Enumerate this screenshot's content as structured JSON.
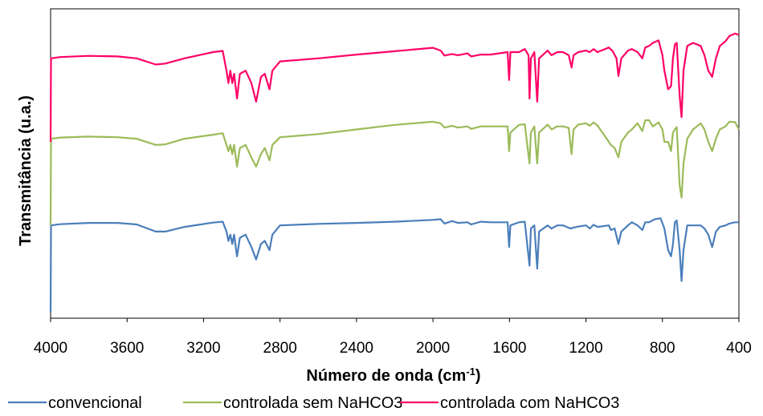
{
  "chart_data": {
    "type": "line",
    "title": "",
    "xlabel": "Número de onda (cm",
    "xlabel_sup": "-1",
    "xlabel_close": ")",
    "ylabel": "Transmitância (u.a.)",
    "xlim": [
      4000,
      400
    ],
    "x_reversed": true,
    "ylim": [
      0,
      100
    ],
    "y_ticks_shown": false,
    "grid": false,
    "legend_position": "bottom",
    "x_ticks": [
      "4000",
      "3600",
      "3200",
      "2800",
      "2400",
      "2000",
      "1600",
      "1200",
      "800",
      "400"
    ],
    "series": [
      {
        "name": "convencional",
        "color": "#4a7ebb",
        "points": [
          [
            4000,
            2
          ],
          [
            3998,
            30
          ],
          [
            3950,
            30.4
          ],
          [
            3800,
            30.8
          ],
          [
            3650,
            30.8
          ],
          [
            3550,
            30.3
          ],
          [
            3450,
            28
          ],
          [
            3400,
            28
          ],
          [
            3300,
            29.5
          ],
          [
            3150,
            30.9
          ],
          [
            3100,
            31.2
          ],
          [
            3080,
            28
          ],
          [
            3070,
            25
          ],
          [
            3060,
            27
          ],
          [
            3050,
            24
          ],
          [
            3040,
            27
          ],
          [
            3025,
            20
          ],
          [
            3010,
            26
          ],
          [
            2980,
            27
          ],
          [
            2950,
            23
          ],
          [
            2925,
            19
          ],
          [
            2900,
            24
          ],
          [
            2880,
            25
          ],
          [
            2855,
            22
          ],
          [
            2840,
            27
          ],
          [
            2800,
            30
          ],
          [
            2600,
            30.5
          ],
          [
            2400,
            30.8
          ],
          [
            2200,
            31.2
          ],
          [
            2000,
            31.8
          ],
          [
            1960,
            32
          ],
          [
            1940,
            30.6
          ],
          [
            1900,
            31.4
          ],
          [
            1870,
            30.8
          ],
          [
            1820,
            31
          ],
          [
            1800,
            30.3
          ],
          [
            1750,
            31.2
          ],
          [
            1700,
            31
          ],
          [
            1610,
            31
          ],
          [
            1602,
            23
          ],
          [
            1595,
            30
          ],
          [
            1550,
            31
          ],
          [
            1520,
            31.2
          ],
          [
            1495,
            17
          ],
          [
            1488,
            29
          ],
          [
            1470,
            30
          ],
          [
            1455,
            16
          ],
          [
            1445,
            28
          ],
          [
            1400,
            30
          ],
          [
            1380,
            29
          ],
          [
            1350,
            30
          ],
          [
            1320,
            30
          ],
          [
            1280,
            29
          ],
          [
            1250,
            29.5
          ],
          [
            1200,
            30
          ],
          [
            1180,
            29
          ],
          [
            1160,
            30.2
          ],
          [
            1140,
            29.5
          ],
          [
            1080,
            30
          ],
          [
            1070,
            28.5
          ],
          [
            1050,
            29
          ],
          [
            1030,
            24
          ],
          [
            1015,
            28
          ],
          [
            980,
            30
          ],
          [
            960,
            31
          ],
          [
            930,
            30
          ],
          [
            905,
            28.5
          ],
          [
            890,
            31
          ],
          [
            870,
            31
          ],
          [
            840,
            32
          ],
          [
            810,
            32.3
          ],
          [
            790,
            29
          ],
          [
            770,
            22
          ],
          [
            755,
            20
          ],
          [
            745,
            24
          ],
          [
            735,
            31
          ],
          [
            725,
            31.6
          ],
          [
            710,
            22
          ],
          [
            700,
            12
          ],
          [
            690,
            22
          ],
          [
            670,
            30
          ],
          [
            640,
            30
          ],
          [
            600,
            30
          ],
          [
            580,
            29
          ],
          [
            560,
            27
          ],
          [
            540,
            23
          ],
          [
            520,
            28
          ],
          [
            500,
            29.5
          ],
          [
            470,
            30
          ],
          [
            450,
            30.6
          ],
          [
            420,
            31
          ],
          [
            400,
            31
          ]
        ]
      },
      {
        "name": "controlada sem NaHCO3",
        "color": "#9bbb59",
        "points": [
          [
            4000,
            30
          ],
          [
            3998,
            58
          ],
          [
            3950,
            58.4
          ],
          [
            3800,
            58.7
          ],
          [
            3650,
            58.5
          ],
          [
            3550,
            58
          ],
          [
            3450,
            56
          ],
          [
            3400,
            56.2
          ],
          [
            3300,
            58
          ],
          [
            3150,
            59.3
          ],
          [
            3100,
            59.8
          ],
          [
            3080,
            56
          ],
          [
            3070,
            54
          ],
          [
            3060,
            56
          ],
          [
            3050,
            53
          ],
          [
            3040,
            56
          ],
          [
            3025,
            49
          ],
          [
            3010,
            55
          ],
          [
            2980,
            56
          ],
          [
            2950,
            52
          ],
          [
            2925,
            49
          ],
          [
            2900,
            53
          ],
          [
            2880,
            55
          ],
          [
            2855,
            51
          ],
          [
            2840,
            56
          ],
          [
            2800,
            58.5
          ],
          [
            2600,
            59.5
          ],
          [
            2400,
            61
          ],
          [
            2200,
            62.5
          ],
          [
            2000,
            63.5
          ],
          [
            1960,
            63
          ],
          [
            1940,
            61.6
          ],
          [
            1900,
            62.2
          ],
          [
            1870,
            61.6
          ],
          [
            1820,
            62
          ],
          [
            1800,
            61.2
          ],
          [
            1750,
            62
          ],
          [
            1700,
            62
          ],
          [
            1610,
            62
          ],
          [
            1602,
            54
          ],
          [
            1595,
            60
          ],
          [
            1550,
            62.5
          ],
          [
            1520,
            62.7
          ],
          [
            1495,
            50
          ],
          [
            1488,
            60
          ],
          [
            1470,
            62
          ],
          [
            1455,
            50
          ],
          [
            1445,
            60
          ],
          [
            1400,
            62.6
          ],
          [
            1380,
            61
          ],
          [
            1350,
            62
          ],
          [
            1320,
            62
          ],
          [
            1290,
            61.5
          ],
          [
            1275,
            53
          ],
          [
            1265,
            61
          ],
          [
            1240,
            62.6
          ],
          [
            1200,
            63
          ],
          [
            1180,
            62.2
          ],
          [
            1160,
            63.3
          ],
          [
            1140,
            62.3
          ],
          [
            1080,
            57
          ],
          [
            1070,
            56
          ],
          [
            1050,
            55
          ],
          [
            1030,
            52
          ],
          [
            1015,
            57
          ],
          [
            980,
            60
          ],
          [
            960,
            61
          ],
          [
            930,
            63
          ],
          [
            905,
            60.5
          ],
          [
            890,
            64
          ],
          [
            870,
            64
          ],
          [
            850,
            62
          ],
          [
            820,
            63.3
          ],
          [
            800,
            61
          ],
          [
            790,
            57
          ],
          [
            770,
            57
          ],
          [
            755,
            54
          ],
          [
            745,
            60
          ],
          [
            735,
            61
          ],
          [
            725,
            61.8
          ],
          [
            710,
            43
          ],
          [
            700,
            39
          ],
          [
            690,
            50
          ],
          [
            670,
            58
          ],
          [
            640,
            61
          ],
          [
            600,
            63
          ],
          [
            580,
            61
          ],
          [
            560,
            57
          ],
          [
            540,
            54
          ],
          [
            520,
            58
          ],
          [
            500,
            61
          ],
          [
            470,
            62
          ],
          [
            450,
            63.5
          ],
          [
            420,
            63.4
          ],
          [
            400,
            61
          ]
        ]
      },
      {
        "name": "controlada com NaHCO3",
        "color": "#ff0066",
        "points": [
          [
            4000,
            57
          ],
          [
            3998,
            84
          ],
          [
            3950,
            84.4
          ],
          [
            3800,
            84.8
          ],
          [
            3650,
            84.6
          ],
          [
            3550,
            84
          ],
          [
            3450,
            82
          ],
          [
            3400,
            82.3
          ],
          [
            3300,
            84
          ],
          [
            3150,
            86
          ],
          [
            3100,
            86.4
          ],
          [
            3080,
            80
          ],
          [
            3070,
            76
          ],
          [
            3060,
            80
          ],
          [
            3050,
            76
          ],
          [
            3040,
            79
          ],
          [
            3025,
            71
          ],
          [
            3010,
            79
          ],
          [
            2980,
            80
          ],
          [
            2950,
            76
          ],
          [
            2925,
            70
          ],
          [
            2900,
            78
          ],
          [
            2880,
            79
          ],
          [
            2855,
            74
          ],
          [
            2840,
            80
          ],
          [
            2800,
            83
          ],
          [
            2600,
            84
          ],
          [
            2400,
            85.2
          ],
          [
            2200,
            86.3
          ],
          [
            2000,
            87.4
          ],
          [
            1960,
            86.5
          ],
          [
            1940,
            84.9
          ],
          [
            1900,
            85.4
          ],
          [
            1870,
            85
          ],
          [
            1820,
            85.6
          ],
          [
            1800,
            84.6
          ],
          [
            1750,
            85.2
          ],
          [
            1700,
            85.2
          ],
          [
            1610,
            86
          ],
          [
            1602,
            77
          ],
          [
            1595,
            86
          ],
          [
            1550,
            86
          ],
          [
            1520,
            87
          ],
          [
            1500,
            85
          ],
          [
            1495,
            71
          ],
          [
            1488,
            84
          ],
          [
            1470,
            86
          ],
          [
            1455,
            70
          ],
          [
            1445,
            84
          ],
          [
            1400,
            86.5
          ],
          [
            1380,
            85
          ],
          [
            1350,
            86
          ],
          [
            1320,
            86
          ],
          [
            1290,
            85
          ],
          [
            1275,
            81
          ],
          [
            1265,
            85
          ],
          [
            1240,
            86
          ],
          [
            1200,
            86.5
          ],
          [
            1180,
            86
          ],
          [
            1160,
            87
          ],
          [
            1140,
            86
          ],
          [
            1080,
            87.5
          ],
          [
            1060,
            86.3
          ],
          [
            1040,
            84
          ],
          [
            1030,
            78.3
          ],
          [
            1015,
            84
          ],
          [
            980,
            86.5
          ],
          [
            960,
            87
          ],
          [
            930,
            86
          ],
          [
            905,
            84
          ],
          [
            890,
            87.5
          ],
          [
            870,
            88
          ],
          [
            850,
            89
          ],
          [
            820,
            89.8
          ],
          [
            800,
            85
          ],
          [
            790,
            80
          ],
          [
            770,
            74
          ],
          [
            755,
            75
          ],
          [
            745,
            84
          ],
          [
            735,
            88.5
          ],
          [
            725,
            89
          ],
          [
            710,
            72
          ],
          [
            700,
            65
          ],
          [
            690,
            80
          ],
          [
            670,
            88
          ],
          [
            640,
            89
          ],
          [
            600,
            88
          ],
          [
            580,
            85
          ],
          [
            560,
            80
          ],
          [
            540,
            78
          ],
          [
            520,
            84
          ],
          [
            500,
            88
          ],
          [
            470,
            89.5
          ],
          [
            450,
            91.2
          ],
          [
            420,
            92
          ],
          [
            400,
            91.6
          ]
        ]
      }
    ]
  }
}
